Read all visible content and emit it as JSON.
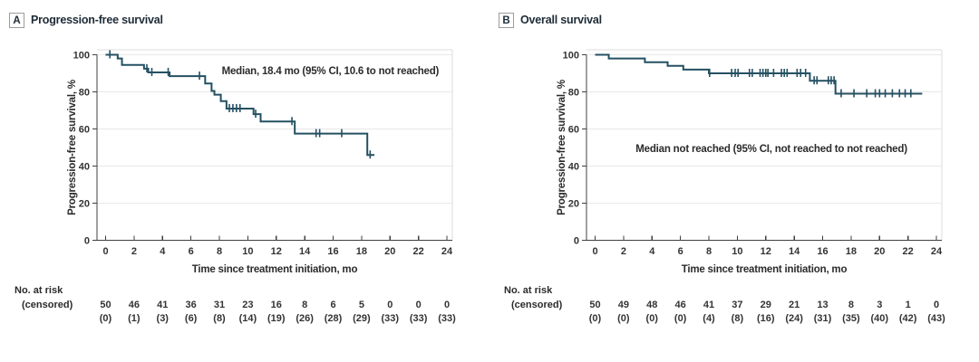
{
  "colors": {
    "curve": "#245062",
    "axis": "#404040",
    "text": "#333333",
    "grid": "#e8e8e8",
    "frame": "#dcdcdc"
  },
  "chart_data": [
    {
      "type": "line",
      "subtype": "kaplan-meier-step",
      "panel_label": "A",
      "title": "Progression-free survival",
      "annotation": {
        "text": "Median, 18.4 mo (95% CI, 10.6 to not reached)",
        "x_mo": 15.8,
        "y_pct": 91
      },
      "xlabel": "Time since treatment initiation, mo",
      "ylabel": "Progression-free survival, %",
      "xlim": [
        0,
        24
      ],
      "ylim": [
        0,
        100
      ],
      "xticks": [
        0,
        2,
        4,
        6,
        8,
        10,
        12,
        14,
        16,
        18,
        20,
        22,
        24
      ],
      "yticks": [
        0,
        20,
        40,
        60,
        80,
        100
      ],
      "grid": "horizontal",
      "steps": [
        [
          0,
          100
        ],
        [
          0.85,
          98
        ],
        [
          1.15,
          94.5
        ],
        [
          2.7,
          92.5
        ],
        [
          3.0,
          90.5
        ],
        [
          4.5,
          88.5
        ],
        [
          7.0,
          84.5
        ],
        [
          7.45,
          80.5
        ],
        [
          7.65,
          78.5
        ],
        [
          8.1,
          75
        ],
        [
          8.5,
          71
        ],
        [
          10.4,
          68
        ],
        [
          10.9,
          64
        ],
        [
          13.3,
          57.5
        ],
        [
          18.4,
          46
        ]
      ],
      "end_mo": 18.9,
      "censor_marks": [
        [
          0.3,
          100
        ],
        [
          2.9,
          92.5
        ],
        [
          3.25,
          90.5
        ],
        [
          4.4,
          90.5
        ],
        [
          6.6,
          88.5
        ],
        [
          8.7,
          71
        ],
        [
          8.95,
          71
        ],
        [
          9.2,
          71
        ],
        [
          9.45,
          71
        ],
        [
          10.55,
          68
        ],
        [
          13.1,
          64
        ],
        [
          14.8,
          57.5
        ],
        [
          15.05,
          57.5
        ],
        [
          16.6,
          57.5
        ],
        [
          18.6,
          46
        ]
      ],
      "risk_label": "No. at risk",
      "censored_label": "(censored)",
      "at_risk": [
        50,
        46,
        41,
        36,
        31,
        23,
        16,
        8,
        6,
        5,
        0,
        0,
        0
      ],
      "censored": [
        "(0)",
        "(1)",
        "(3)",
        "(6)",
        "(8)",
        "(14)",
        "(19)",
        "(26)",
        "(28)",
        "(29)",
        "(33)",
        "(33)",
        "(33)"
      ]
    },
    {
      "type": "line",
      "subtype": "kaplan-meier-step",
      "panel_label": "B",
      "title": "Overall survival",
      "annotation": {
        "text": "Median not reached (95% CI, not reached to not reached)",
        "x_mo": 12.4,
        "y_pct": 49
      },
      "xlabel": "Time since treatment initiation, mo",
      "ylabel": "Progression-free survival, %",
      "xlim": [
        0,
        24
      ],
      "ylim": [
        0,
        100
      ],
      "xticks": [
        0,
        2,
        4,
        6,
        8,
        10,
        12,
        14,
        16,
        18,
        20,
        22,
        24
      ],
      "yticks": [
        0,
        20,
        40,
        60,
        80,
        100
      ],
      "grid": "horizontal",
      "steps": [
        [
          0,
          100
        ],
        [
          0.96,
          98
        ],
        [
          3.5,
          96
        ],
        [
          5.1,
          94
        ],
        [
          6.2,
          92
        ],
        [
          8.0,
          90
        ],
        [
          15.1,
          86
        ],
        [
          16.9,
          79
        ]
      ],
      "end_mo": 23.0,
      "censor_marks": [
        [
          8.05,
          90
        ],
        [
          9.6,
          90
        ],
        [
          9.85,
          90
        ],
        [
          10.05,
          90
        ],
        [
          10.85,
          90
        ],
        [
          11.05,
          90
        ],
        [
          11.6,
          90
        ],
        [
          11.8,
          90
        ],
        [
          12.0,
          90
        ],
        [
          12.15,
          90
        ],
        [
          12.55,
          90
        ],
        [
          13.1,
          90
        ],
        [
          13.3,
          90
        ],
        [
          13.5,
          90
        ],
        [
          14.2,
          90
        ],
        [
          14.45,
          90
        ],
        [
          14.8,
          90
        ],
        [
          15.4,
          86
        ],
        [
          15.6,
          86
        ],
        [
          16.4,
          86
        ],
        [
          16.6,
          86
        ],
        [
          16.8,
          86
        ],
        [
          17.3,
          79
        ],
        [
          18.2,
          79
        ],
        [
          19.1,
          79
        ],
        [
          19.7,
          79
        ],
        [
          20.0,
          79
        ],
        [
          20.4,
          79
        ],
        [
          20.9,
          79
        ],
        [
          21.4,
          79
        ],
        [
          21.8,
          79
        ],
        [
          22.2,
          79
        ]
      ],
      "risk_label": "No. at risk",
      "censored_label": "(censored)",
      "at_risk": [
        50,
        49,
        48,
        46,
        41,
        37,
        29,
        21,
        13,
        8,
        3,
        1,
        0
      ],
      "censored": [
        "(0)",
        "(0)",
        "(0)",
        "(0)",
        "(4)",
        "(8)",
        "(16)",
        "(24)",
        "(31)",
        "(35)",
        "(40)",
        "(42)",
        "(43)"
      ]
    }
  ]
}
